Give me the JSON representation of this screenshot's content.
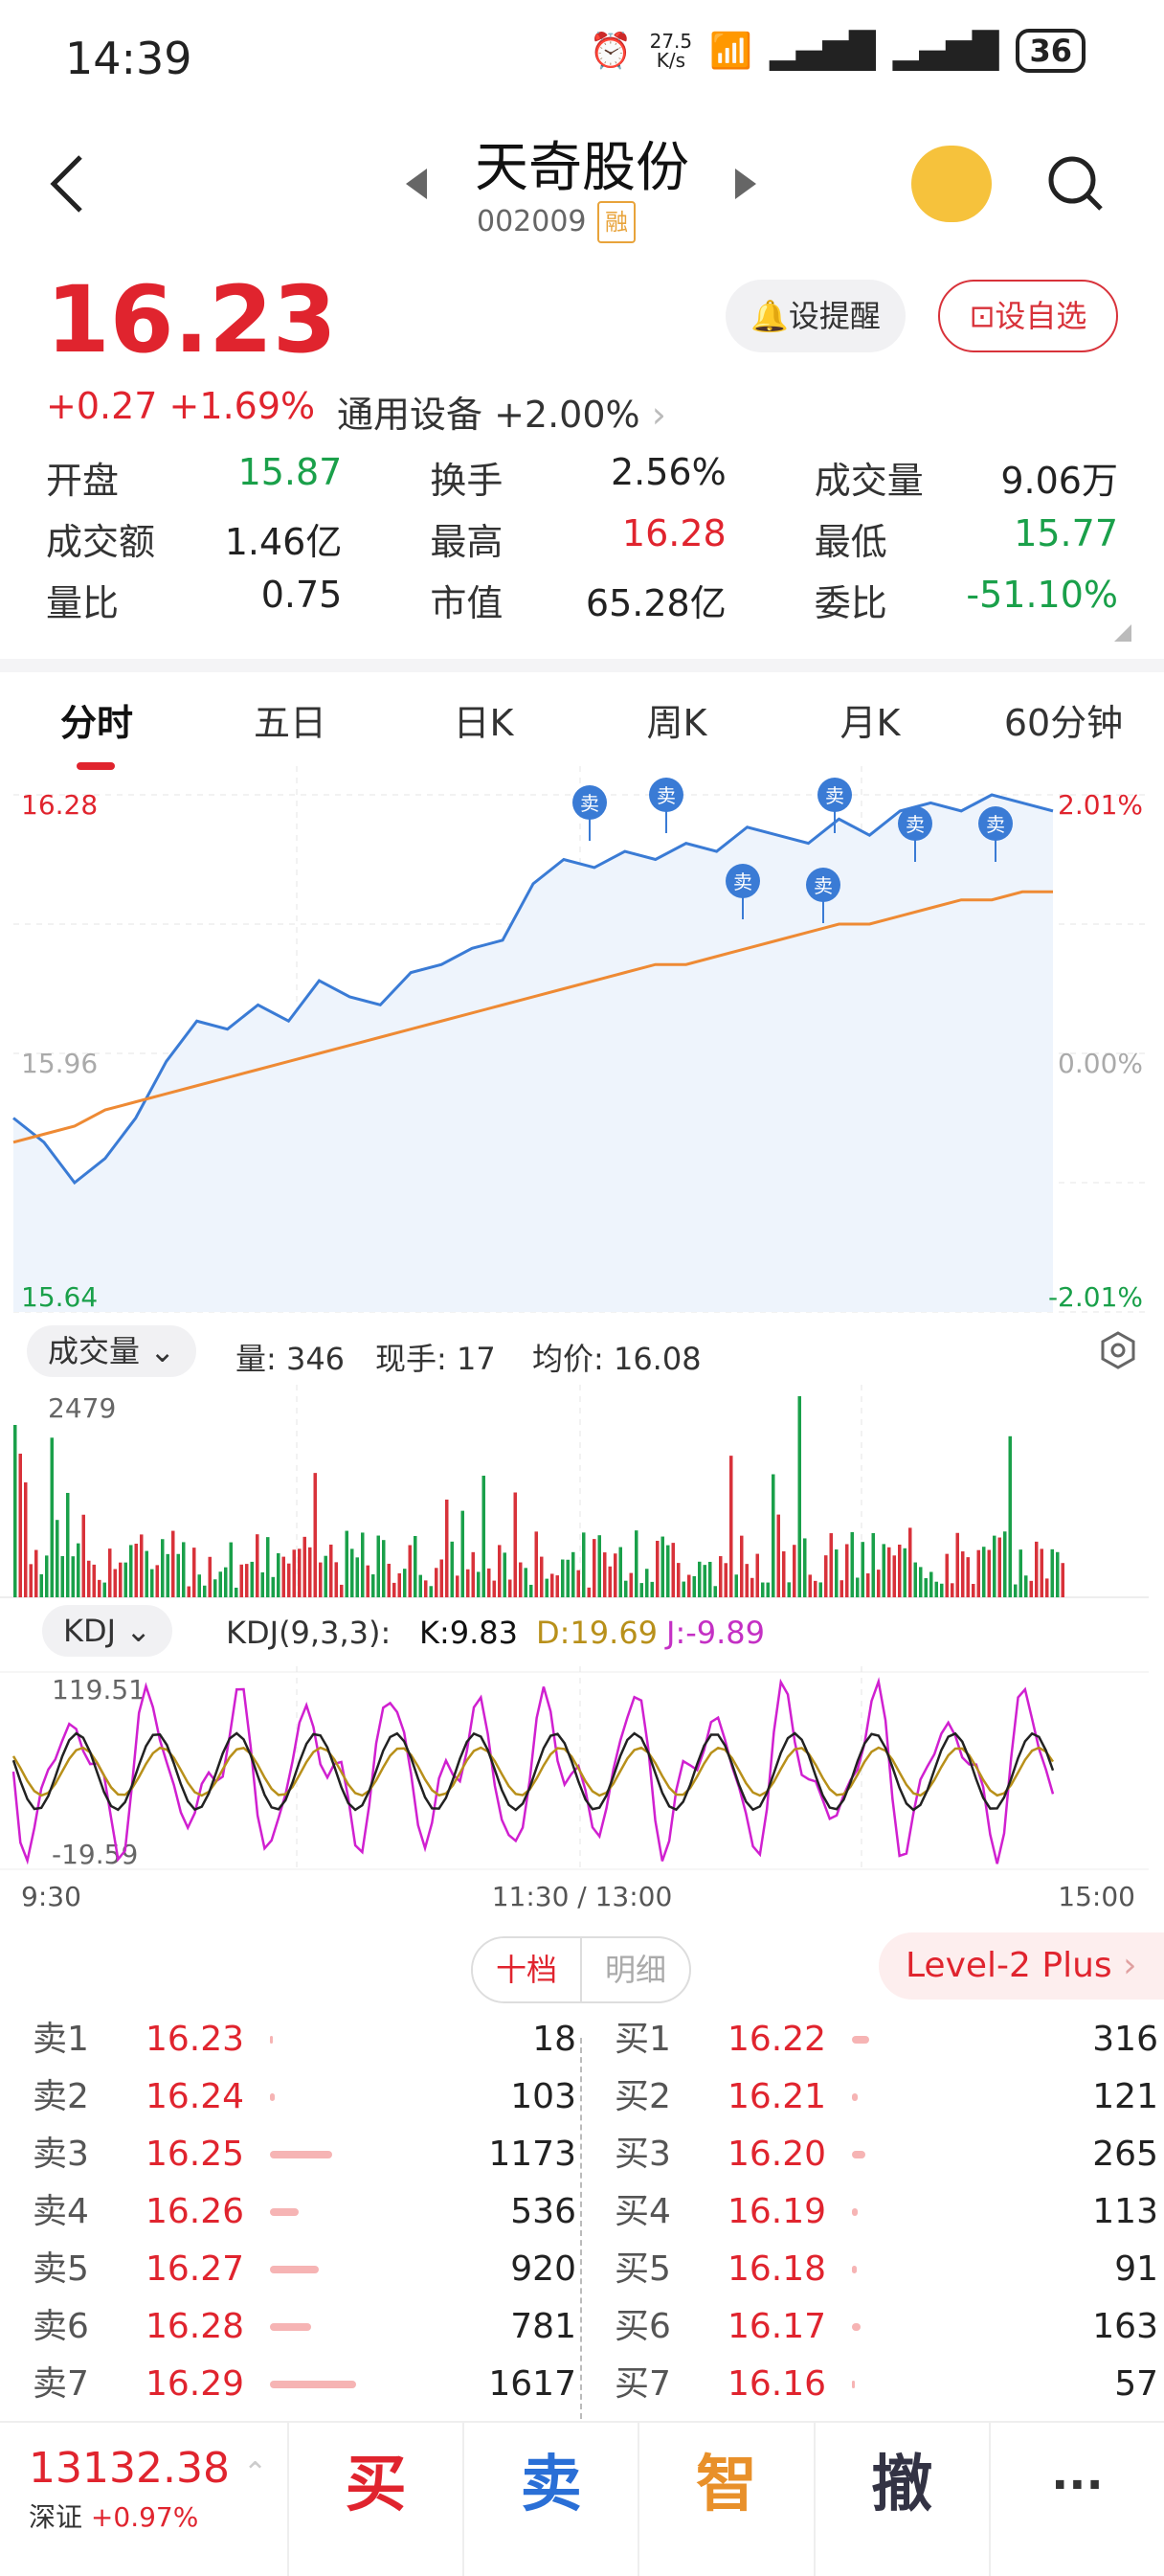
{
  "status_bar": {
    "time": "14:39",
    "net_speed": "27.5\nK/s",
    "battery": "36"
  },
  "header": {
    "title": "天奇股份",
    "code": "002009",
    "tag": "融"
  },
  "quote": {
    "price": "16.23",
    "change": "+0.27",
    "change_pct": "+1.69%",
    "sector": "通用设备 +2.00%",
    "remind_label": "设提醒",
    "add_label": "设自选"
  },
  "stats": [
    [
      {
        "label": "开盘",
        "value": "15.87",
        "color": "green"
      },
      {
        "label": "换手",
        "value": "2.56%",
        "color": "black"
      },
      {
        "label": "成交量",
        "value": "9.06万",
        "color": "black"
      }
    ],
    [
      {
        "label": "成交额",
        "value": "1.46亿",
        "color": "black"
      },
      {
        "label": "最高",
        "value": "16.28",
        "color": "red"
      },
      {
        "label": "最低",
        "value": "15.77",
        "color": "green"
      }
    ],
    [
      {
        "label": "量比",
        "value": "0.75",
        "color": "black"
      },
      {
        "label": "市值",
        "value": "65.28亿",
        "color": "black"
      },
      {
        "label": "委比",
        "value": "-51.10%",
        "color": "green"
      }
    ]
  ],
  "tabs": [
    "分时",
    "五日",
    "日K",
    "周K",
    "月K",
    "60分钟"
  ],
  "chart_data": {
    "type": "line",
    "y_left_labels": [
      "16.28",
      "15.96",
      "15.64"
    ],
    "y_right_labels": [
      "2.01%",
      "0.00%",
      "-2.01%"
    ],
    "x_labels": [
      "9:30",
      "11:30 / 13:00",
      "15:00"
    ],
    "sell_marker": "卖",
    "volume_max_label": "2479",
    "kdj_top": "119.51",
    "kdj_bottom": "-19.59",
    "series": [
      {
        "values": [
          15.88,
          15.85,
          15.8,
          15.83,
          15.88,
          15.95,
          16.0,
          15.99,
          16.02,
          16.0,
          16.05,
          16.03,
          16.02,
          16.06,
          16.07,
          16.09,
          16.1,
          16.17,
          16.2,
          16.19,
          16.21,
          16.2,
          16.22,
          16.21,
          16.24,
          16.23,
          16.22,
          16.25,
          16.23,
          16.26,
          16.27,
          16.26,
          16.28,
          16.27,
          16.26
        ]
      },
      {
        "values": [
          15.85,
          15.86,
          15.87,
          15.89,
          15.9,
          15.91,
          15.92,
          15.93,
          15.94,
          15.95,
          15.96,
          15.97,
          15.98,
          15.99,
          16.0,
          16.01,
          16.02,
          16.03,
          16.04,
          16.05,
          16.06,
          16.07,
          16.07,
          16.08,
          16.09,
          16.1,
          16.11,
          16.12,
          16.12,
          16.13,
          16.14,
          16.15,
          16.15,
          16.16,
          16.16
        ]
      }
    ]
  },
  "volume_bar": {
    "selector": "成交量",
    "vol": "量: 346",
    "now": "现手: 17",
    "avg": "均价: 16.08"
  },
  "kdj_bar": {
    "selector": "KDJ",
    "params": "KDJ(9,3,3):",
    "k": "K:9.83",
    "d": "D:19.69",
    "j": "J:-9.89"
  },
  "orderbook": {
    "tab_active": "十档",
    "tab_other": "明细",
    "level2": "Level-2 Plus",
    "sell": [
      {
        "name": "卖1",
        "price": "16.23",
        "vol": "18",
        "ratio": 0.01
      },
      {
        "name": "卖2",
        "price": "16.24",
        "vol": "103",
        "ratio": 0.06
      },
      {
        "name": "卖3",
        "price": "16.25",
        "vol": "1173",
        "ratio": 0.72
      },
      {
        "name": "卖4",
        "price": "16.26",
        "vol": "536",
        "ratio": 0.33
      },
      {
        "name": "卖5",
        "price": "16.27",
        "vol": "920",
        "ratio": 0.57
      },
      {
        "name": "卖6",
        "price": "16.28",
        "vol": "781",
        "ratio": 0.48
      },
      {
        "name": "卖7",
        "price": "16.29",
        "vol": "1617",
        "ratio": 1.0
      }
    ],
    "buy": [
      {
        "name": "买1",
        "price": "16.22",
        "vol": "316",
        "ratio": 0.2
      },
      {
        "name": "买2",
        "price": "16.21",
        "vol": "121",
        "ratio": 0.07
      },
      {
        "name": "买3",
        "price": "16.20",
        "vol": "265",
        "ratio": 0.16
      },
      {
        "name": "买4",
        "price": "16.19",
        "vol": "113",
        "ratio": 0.07
      },
      {
        "name": "买5",
        "price": "16.18",
        "vol": "91",
        "ratio": 0.05
      },
      {
        "name": "买6",
        "price": "16.17",
        "vol": "163",
        "ratio": 0.1
      },
      {
        "name": "买7",
        "price": "16.16",
        "vol": "57",
        "ratio": 0.03
      }
    ]
  },
  "bottom_bar": {
    "index_value": "13132.38",
    "index_name": "深证",
    "index_pct": "+0.97%",
    "buy": "买",
    "sell": "卖",
    "smart": "智",
    "cancel": "撤",
    "more": "···"
  }
}
